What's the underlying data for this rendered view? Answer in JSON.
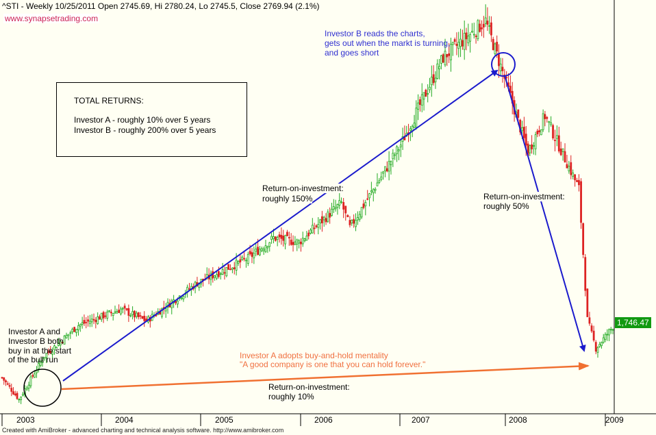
{
  "header": {
    "title": "^STI - Weekly 10/25/2011 Open 2745.69, Hi 2780.24, Lo 2745.5, Close 2769.94 (2.1%)",
    "website": "www.synapsetrading.com",
    "footer": "Created with AmiBroker - advanced charting and technical analysis software. http://www.amibroker.com"
  },
  "returns_box": {
    "title": "TOTAL RETURNS:",
    "investor_a": "Investor A - roughly 10% over 5 years",
    "investor_b": "Investor B - roughly 200% over 5 years"
  },
  "annotations": {
    "investor_b_note": [
      "Investor B reads the charts,",
      "gets out when the markt is turning,",
      "and goes short"
    ],
    "roi_150": [
      "Return-on-investment:",
      "roughly 150%"
    ],
    "roi_50": [
      "Return-on-investment:",
      "roughly 50%"
    ],
    "roi_10": [
      "Return-on-investment:",
      "roughly 10%"
    ],
    "start_note": [
      "Investor A and",
      "Investor B both",
      "buy in at the start",
      "of the bull run"
    ],
    "investor_a_note": [
      "Investor A adopts buy-and-hold mentality",
      "\"A good company is one that you can hold forever.\""
    ]
  },
  "colors": {
    "background": "#fffff3",
    "up_candle": "#22aa22",
    "down_candle": "#dd2222",
    "investor_b_arrow": "#1a1acc",
    "investor_a_arrow": "#f07030",
    "price_tag": "#119911",
    "website_text": "#cc2255"
  },
  "chart_data": {
    "type": "candlestick",
    "title": "^STI - Weekly",
    "last_price_label": "1,746.47",
    "x_ticks": [
      "2003",
      "2004",
      "2005",
      "2006",
      "2007",
      "2008",
      "2009"
    ],
    "approx_close_path": [
      {
        "x": "2003-01",
        "close": 1400
      },
      {
        "x": "2003-03",
        "close": 1250
      },
      {
        "x": "2003-06",
        "close": 1550
      },
      {
        "x": "2003-10",
        "close": 1760
      },
      {
        "x": "2004-03",
        "close": 1870
      },
      {
        "x": "2004-06",
        "close": 1790
      },
      {
        "x": "2004-12",
        "close": 2050
      },
      {
        "x": "2005-06",
        "close": 2220
      },
      {
        "x": "2005-09",
        "close": 2360
      },
      {
        "x": "2005-12",
        "close": 2330
      },
      {
        "x": "2006-05",
        "close": 2600
      },
      {
        "x": "2006-06",
        "close": 2430
      },
      {
        "x": "2006-12",
        "close": 3000
      },
      {
        "x": "2007-05",
        "close": 3600
      },
      {
        "x": "2007-10",
        "close": 3850
      },
      {
        "x": "2007-12",
        "close": 3500
      },
      {
        "x": "2008-03",
        "close": 2950
      },
      {
        "x": "2008-05",
        "close": 3200
      },
      {
        "x": "2008-09",
        "close": 2700
      },
      {
        "x": "2008-10",
        "close": 1800
      },
      {
        "x": "2008-11",
        "close": 1600
      },
      {
        "x": "2009-01",
        "close": 1750
      }
    ],
    "arrows": [
      {
        "name": "Investor B long",
        "from": "2003-05",
        "to": "2007-10"
      },
      {
        "name": "Investor B short",
        "from": "2007-11",
        "to": "2008-11"
      },
      {
        "name": "Investor A hold",
        "from": "2003-05",
        "to": "2008-11"
      }
    ]
  }
}
